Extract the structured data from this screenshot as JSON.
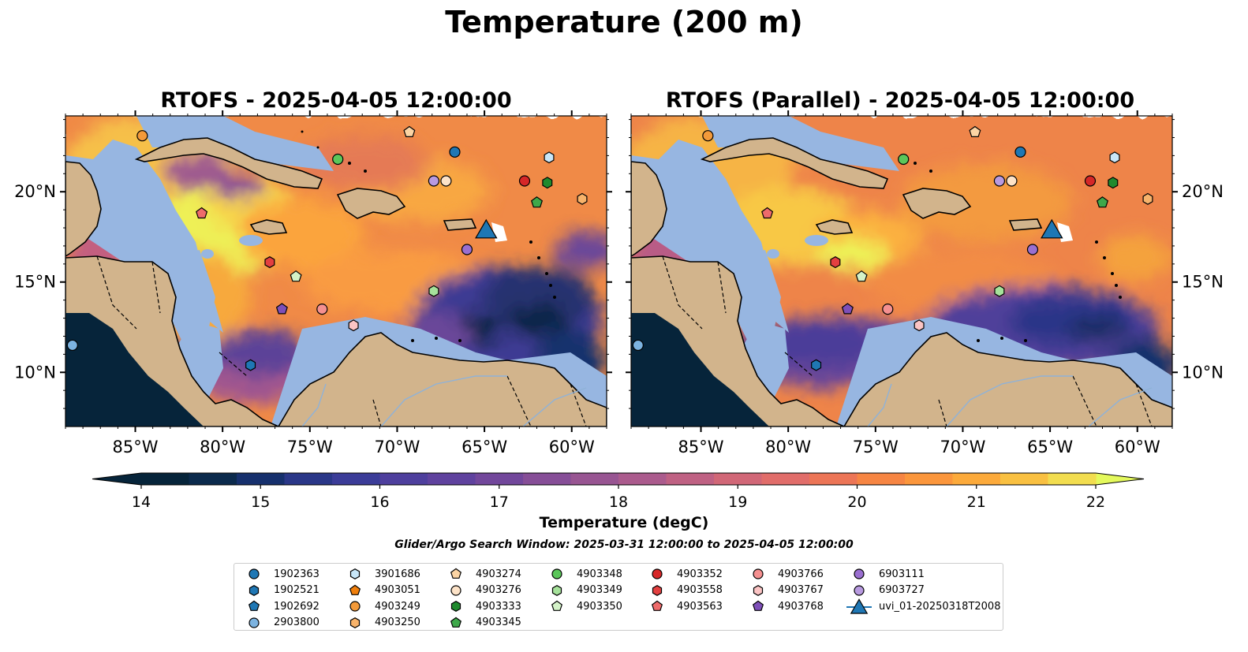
{
  "suptitle": "Temperature (200 m)",
  "panels": [
    {
      "title": "RTOFS - 2025-04-05 12:00:00"
    },
    {
      "title": "RTOFS (Parallel) - 2025-04-05 12:00:00"
    }
  ],
  "colorbar": {
    "label": "Temperature (degC)",
    "ticks": [
      "14",
      "15",
      "16",
      "17",
      "18",
      "19",
      "20",
      "21",
      "22"
    ],
    "vmin": 14,
    "vmax": 22,
    "step": 0.5,
    "extend": "both",
    "colors": [
      "#06243a",
      "#0b2a4c",
      "#16306d",
      "#2a3788",
      "#3b3c98",
      "#4e3f9d",
      "#5f429e",
      "#72479b",
      "#864e97",
      "#985592",
      "#ab5b8d",
      "#bf6183",
      "#d16777",
      "#e16d6a",
      "#ec7556",
      "#f68543",
      "#fb963c",
      "#fcaa3b",
      "#f9c041",
      "#f2dd4f"
    ],
    "under_color": "#06243a",
    "over_color": "#e4f95c"
  },
  "search_window": "Glider/Argo Search Window: 2025-03-31 12:00:00 to 2025-04-05 12:00:00",
  "chart_data": {
    "type": "map",
    "projection": "PlateCarree",
    "lon_range": [
      -89,
      -58
    ],
    "lat_range": [
      7,
      24.2
    ],
    "xticks": [
      {
        "lon": -85,
        "label": "85°W"
      },
      {
        "lon": -80,
        "label": "80°W"
      },
      {
        "lon": -75,
        "label": "75°W"
      },
      {
        "lon": -70,
        "label": "70°W"
      },
      {
        "lon": -65,
        "label": "65°W"
      },
      {
        "lon": -60,
        "label": "60°W"
      }
    ],
    "yticks": [
      {
        "lat": 10,
        "label": "10°N"
      },
      {
        "lat": 15,
        "label": "15°N"
      },
      {
        "lat": 20,
        "label": "20°N"
      }
    ],
    "land_color": "#d2b48c",
    "shelf_color": "#97b6e1",
    "series": [
      {
        "name": "1902363",
        "marker": "circle",
        "color": "#1f77b4",
        "lon": -66.7,
        "lat": 22.2
      },
      {
        "name": "1902521",
        "marker": "hexagon",
        "color": "#1f77b4",
        "lon": -78.4,
        "lat": 10.4
      },
      {
        "name": "1902692",
        "marker": "pentagon",
        "color": "#1f77b4",
        "lon": null,
        "lat": null
      },
      {
        "name": "2903800",
        "marker": "circle",
        "color": "#7cb3e0",
        "lon": -88.6,
        "lat": 11.5
      },
      {
        "name": "3901686",
        "marker": "hexagon",
        "color": "#c8e6f8",
        "lon": -61.3,
        "lat": 21.9
      },
      {
        "name": "4903051",
        "marker": "pentagon",
        "color": "#f07f0c",
        "lon": null,
        "lat": null
      },
      {
        "name": "4903249",
        "marker": "circle",
        "color": "#f39a3a",
        "lon": -84.6,
        "lat": 23.1
      },
      {
        "name": "4903250",
        "marker": "hexagon",
        "color": "#f7b36b",
        "lon": -59.4,
        "lat": 19.6
      },
      {
        "name": "4903274",
        "marker": "pentagon",
        "color": "#fbd4a4",
        "lon": -69.3,
        "lat": 23.3
      },
      {
        "name": "4903276",
        "marker": "circle",
        "color": "#fde3c8",
        "lon": -67.2,
        "lat": 20.6
      },
      {
        "name": "4903333",
        "marker": "hexagon",
        "color": "#1f8a2e",
        "lon": -61.4,
        "lat": 20.5
      },
      {
        "name": "4903345",
        "marker": "pentagon",
        "color": "#3ea84a",
        "lon": -62.0,
        "lat": 19.4
      },
      {
        "name": "4903348",
        "marker": "circle",
        "color": "#5bc65a",
        "lon": -73.4,
        "lat": 21.8
      },
      {
        "name": "4903349",
        "marker": "hexagon",
        "color": "#a6e29b",
        "lon": -67.9,
        "lat": 14.5
      },
      {
        "name": "4903350",
        "marker": "pentagon",
        "color": "#d4f2c8",
        "lon": -75.8,
        "lat": 15.3
      },
      {
        "name": "4903352",
        "marker": "circle",
        "color": "#d62728",
        "lon": -62.7,
        "lat": 20.6
      },
      {
        "name": "4903558",
        "marker": "hexagon",
        "color": "#e34040",
        "lon": -77.3,
        "lat": 16.1
      },
      {
        "name": "4903563",
        "marker": "pentagon",
        "color": "#ee6b6b",
        "lon": -81.2,
        "lat": 18.8
      },
      {
        "name": "4903766",
        "marker": "circle",
        "color": "#f59090",
        "lon": -74.3,
        "lat": 13.5
      },
      {
        "name": "4903767",
        "marker": "hexagon",
        "color": "#fbc4c4",
        "lon": -72.5,
        "lat": 12.6
      },
      {
        "name": "4903768",
        "marker": "pentagon",
        "color": "#7e4fb8",
        "lon": -76.6,
        "lat": 13.5
      },
      {
        "name": "6903111",
        "marker": "circle",
        "color": "#9a6fd0",
        "lon": -66.0,
        "lat": 16.8
      },
      {
        "name": "6903727",
        "marker": "circle",
        "color": "#b89ae0",
        "lon": -67.9,
        "lat": 20.6
      },
      {
        "name": "uvi_01-20250318T2008",
        "marker": "triangle",
        "color": "#1f77b4",
        "lon": -64.9,
        "lat": 17.95
      }
    ]
  }
}
